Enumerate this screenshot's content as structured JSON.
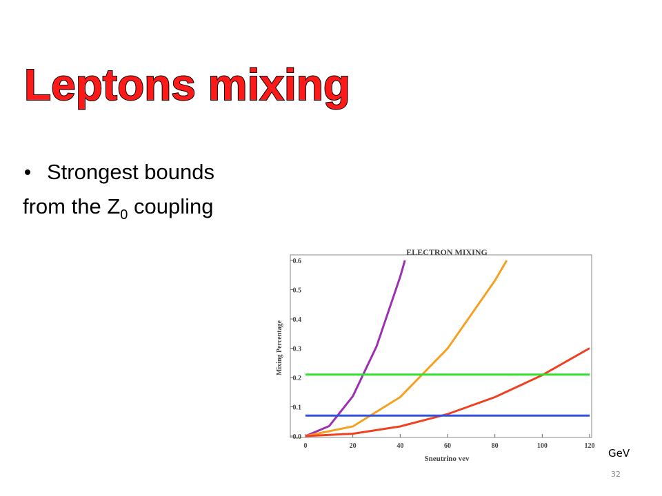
{
  "slide": {
    "title": "Leptons mixing",
    "bullet": "Strongest bounds",
    "line2": {
      "text": "from the Z",
      "subscript": "0",
      "rest": " coupling"
    },
    "unit_note": "GeV",
    "page_number": "32"
  },
  "chart_data": {
    "type": "line",
    "title": "ELECTRON MIXING",
    "x_label": "Sneutrino vev",
    "y_label": "Mixing Percentage",
    "xlim": [
      0,
      120
    ],
    "ylim": [
      0,
      0.6
    ],
    "xticks": [
      0,
      20,
      40,
      60,
      80,
      100,
      120
    ],
    "yticks": [
      {
        "value": 0,
        "label": "0.0"
      },
      0.1,
      0.2,
      0.3,
      0.4,
      0.5,
      0.6
    ],
    "series": [
      {
        "color": "#9b30b0",
        "x": [
          0,
          10,
          20,
          30,
          40,
          42
        ],
        "values": [
          0,
          0.034,
          0.136,
          0.306,
          0.544,
          0.6
        ]
      },
      {
        "color": "#f5a020",
        "x": [
          0,
          20,
          40,
          60,
          80,
          85
        ],
        "values": [
          0,
          0.033,
          0.133,
          0.299,
          0.531,
          0.6
        ]
      },
      {
        "color": "#f04020",
        "x": [
          0,
          20,
          40,
          60,
          80,
          100,
          120
        ],
        "values": [
          0,
          0.008,
          0.033,
          0.075,
          0.133,
          0.208,
          0.3
        ]
      },
      {
        "color": "#30e030",
        "x": [
          0,
          120
        ],
        "values": [
          0.21,
          0.21
        ]
      },
      {
        "color": "#3050e0",
        "x": [
          0,
          120
        ],
        "values": [
          0.07,
          0.07
        ]
      }
    ]
  }
}
